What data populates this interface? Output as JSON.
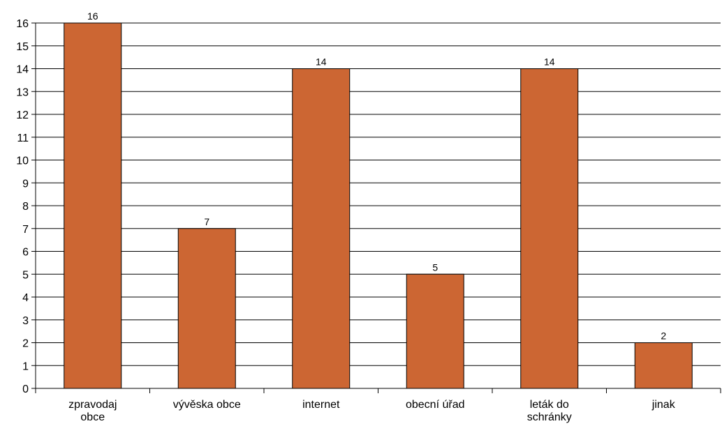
{
  "chart_data": {
    "type": "bar",
    "categories": [
      [
        "zpravodaj",
        "obce"
      ],
      [
        "vývěska obce"
      ],
      [
        "internet"
      ],
      [
        "obecní úřad"
      ],
      [
        "leták do",
        "schránky"
      ],
      [
        "jinak"
      ]
    ],
    "values": [
      16,
      7,
      14,
      5,
      14,
      2
    ],
    "data_labels": [
      "16",
      "7",
      "14",
      "5",
      "14",
      "2"
    ],
    "y_ticks": [
      "0",
      "1",
      "2",
      "3",
      "4",
      "5",
      "6",
      "7",
      "8",
      "9",
      "10",
      "11",
      "12",
      "13",
      "14",
      "15",
      "16"
    ],
    "ylim": [
      0,
      16
    ],
    "grid": true,
    "legend": "none",
    "colors": {
      "bar": "#CC6633",
      "bar_stroke": "#000000",
      "grid": "#000000"
    }
  }
}
